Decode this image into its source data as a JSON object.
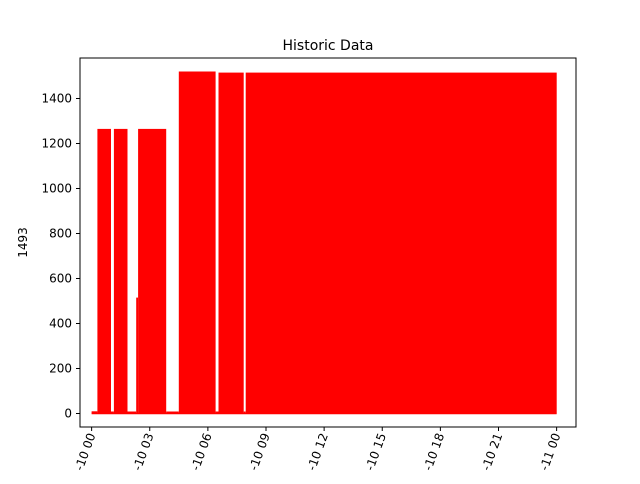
{
  "chart_data": {
    "type": "area",
    "title": "Historic Data",
    "xlabel": "",
    "ylabel": "1493",
    "ylim": [
      -60,
      1580
    ],
    "y_ticks": [
      0,
      200,
      400,
      600,
      800,
      1000,
      1200,
      1400
    ],
    "x_range_hours": [
      -0.6,
      25.0
    ],
    "x_ticks": [
      {
        "hour": 0,
        "label": "-10 00"
      },
      {
        "hour": 3,
        "label": "-10 03"
      },
      {
        "hour": 6,
        "label": "-10 06"
      },
      {
        "hour": 9,
        "label": "-10 09"
      },
      {
        "hour": 12,
        "label": "-10 12"
      },
      {
        "hour": 15,
        "label": "-10 15"
      },
      {
        "hour": 18,
        "label": "-10 18"
      },
      {
        "hour": 21,
        "label": "-10 21"
      },
      {
        "hour": 24,
        "label": "-11 00"
      }
    ],
    "series": [
      {
        "color": "#ff0000",
        "baseline": 0,
        "segments": [
          {
            "start_hour": 0.0,
            "end_hour": 0.3,
            "max": 10
          },
          {
            "start_hour": 0.3,
            "end_hour": 1.0,
            "max": 1265
          },
          {
            "start_hour": 1.0,
            "end_hour": 1.15,
            "max": 5
          },
          {
            "start_hour": 1.15,
            "end_hour": 1.85,
            "max": 1265
          },
          {
            "start_hour": 1.85,
            "end_hour": 2.3,
            "max": 5
          },
          {
            "start_hour": 2.3,
            "end_hour": 2.4,
            "max": 515
          },
          {
            "start_hour": 2.4,
            "end_hour": 3.85,
            "max": 1265
          },
          {
            "start_hour": 3.85,
            "end_hour": 4.5,
            "max": 5
          },
          {
            "start_hour": 4.5,
            "end_hour": 6.4,
            "max": 1520
          },
          {
            "start_hour": 6.4,
            "end_hour": 6.55,
            "max": 5
          },
          {
            "start_hour": 6.55,
            "end_hour": 7.85,
            "max": 1515
          },
          {
            "start_hour": 7.85,
            "end_hour": 7.95,
            "max": 5
          },
          {
            "start_hour": 7.95,
            "end_hour": 24.0,
            "max": 1515
          }
        ]
      }
    ],
    "grid": false,
    "legend": "none"
  }
}
